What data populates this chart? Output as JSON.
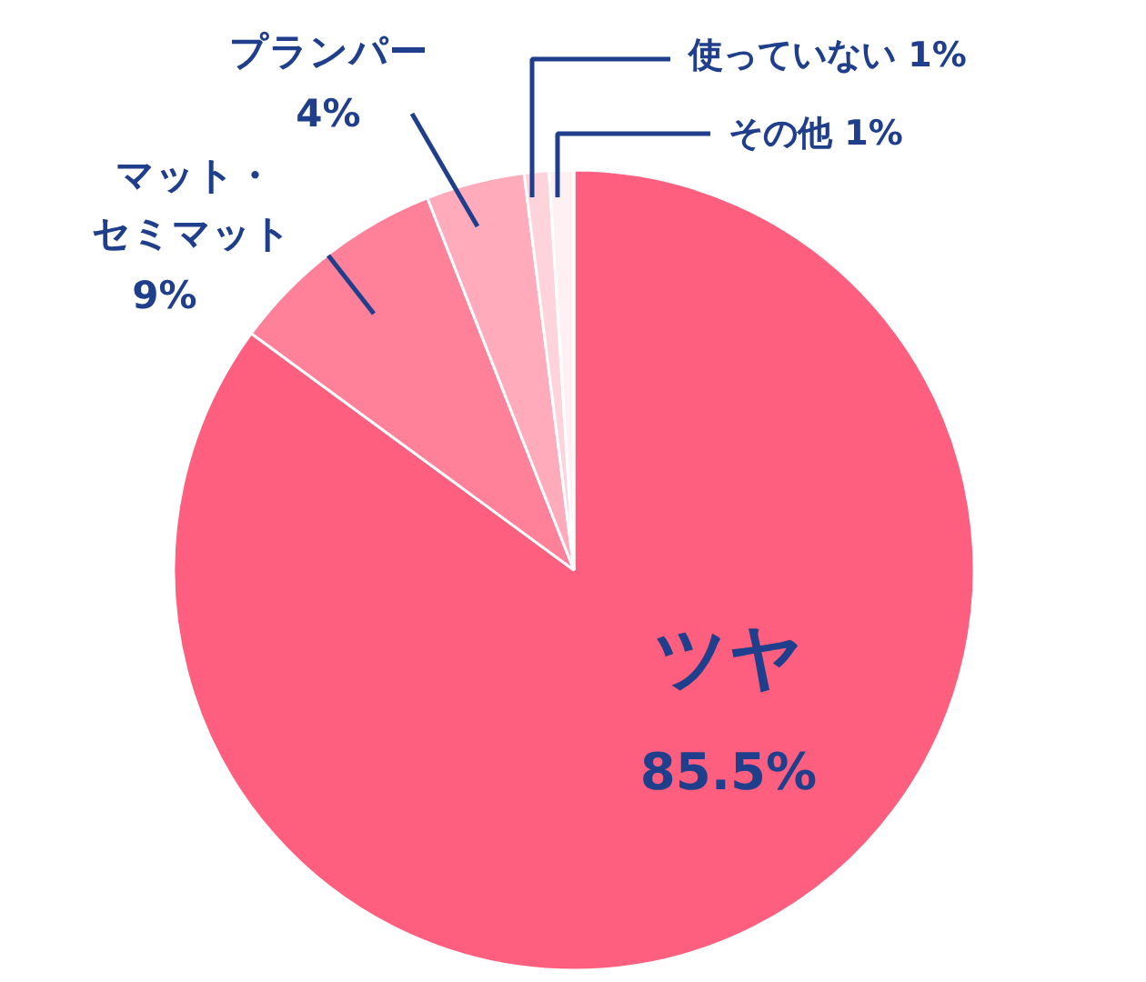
{
  "chart_data": {
    "type": "pie",
    "categories": [
      "ツヤ",
      "マット・セミマット",
      "プランパー",
      "使っていない",
      "その他"
    ],
    "values": [
      85.5,
      9,
      4,
      1,
      1
    ],
    "colors": [
      "#ff5f7e",
      "#ff8099",
      "#ffabbc",
      "#ffd3dc",
      "#fff0f3"
    ],
    "value_labels": [
      "85.5%",
      "9%",
      "4%",
      "1%",
      "1%"
    ]
  }
}
